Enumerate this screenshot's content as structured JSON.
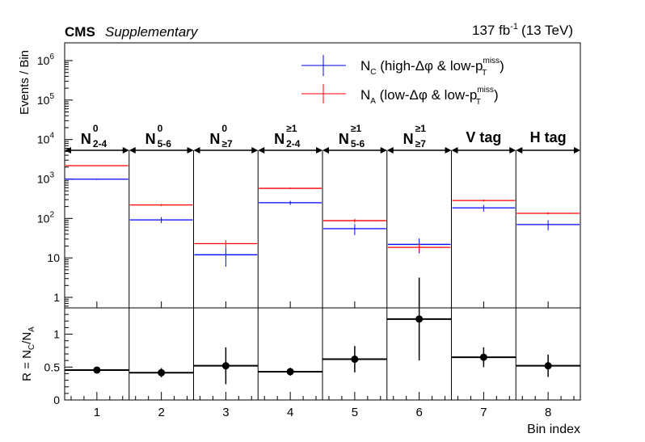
{
  "chart_data": [
    {
      "type": "line",
      "panel": "top",
      "experiment": "CMS",
      "experiment_note": "Supplementary",
      "luminosity": "137 fb",
      "luminosity_exp": "-1",
      "energy": "(13 TeV)",
      "ylabel": "Events / Bin",
      "yscale": "log",
      "ylim": [
        0.5,
        2000000
      ],
      "xlim": [
        0.5,
        8.5
      ],
      "y_tick_labels": [
        "1",
        "10",
        "10",
        "10",
        "10",
        "10",
        "10"
      ],
      "y_tick_exponents": [
        "",
        "",
        "2",
        "3",
        "4",
        "5",
        "6"
      ],
      "categories": [
        {
          "main": "N",
          "sup": "0",
          "sub": "2-4"
        },
        {
          "main": "N",
          "sup": "0",
          "sub": "5-6"
        },
        {
          "main": "N",
          "sup": "0",
          "sub": "≥7"
        },
        {
          "main": "N",
          "sup": "≥1",
          "sub": "2-4"
        },
        {
          "main": "N",
          "sup": "≥1",
          "sub": "5-6"
        },
        {
          "main": "N",
          "sup": "≥1",
          "sub": "≥7"
        },
        {
          "main": "V tag",
          "sup": "",
          "sub": ""
        },
        {
          "main": "H tag",
          "sup": "",
          "sub": ""
        }
      ],
      "series": [
        {
          "name": "N_C (high-Δφ & low-p_T^miss)",
          "color": "#0000ff",
          "x": [
            1,
            2,
            3,
            4,
            5,
            6,
            7,
            8
          ],
          "values": [
            990,
            92,
            12,
            250,
            55,
            22,
            185,
            70
          ],
          "errors": [
            40,
            16,
            6,
            30,
            17,
            9,
            35,
            20
          ]
        },
        {
          "name": "N_A (low-Δφ & low-p_T^miss)",
          "color": "#ff0000",
          "x": [
            1,
            2,
            3,
            4,
            5,
            6,
            7,
            8
          ],
          "values": [
            2180,
            220,
            23,
            580,
            88,
            18.5,
            285,
            135
          ],
          "errors": [
            50,
            15,
            5,
            25,
            10,
            4,
            18,
            10
          ]
        }
      ],
      "legend": [
        {
          "main": "N",
          "sub": "C",
          "text": " (high-Δφ & low-p",
          "sup2": "miss",
          "sub2": "T",
          "close": ")",
          "color": "#0000ff"
        },
        {
          "main": "N",
          "sub": "A",
          "text": " (low-Δφ & low-p",
          "sup2": "miss",
          "sub2": "T",
          "close": ")",
          "color": "#ff0000"
        }
      ],
      "legend_position": "top-right"
    },
    {
      "type": "scatter",
      "panel": "bottom",
      "ylabel": "R = N_C/N_A",
      "ylabel_parts": {
        "main": "R = N",
        "sub1": "C",
        "slash": "/N",
        "sub2": "A"
      },
      "xlabel": "Bin index",
      "ylim": [
        0,
        1.4
      ],
      "y_tick_labels": [
        "0",
        "0.5",
        "1"
      ],
      "x_tick_labels": [
        "1",
        "2",
        "3",
        "4",
        "5",
        "6",
        "7",
        "8"
      ],
      "x": [
        1,
        2,
        3,
        4,
        5,
        6,
        7,
        8
      ],
      "values": [
        0.455,
        0.415,
        0.52,
        0.43,
        0.62,
        1.23,
        0.65,
        0.52
      ],
      "err_low": [
        0.03,
        0.07,
        0.28,
        0.06,
        0.2,
        0.63,
        0.15,
        0.17
      ],
      "err_high": [
        0.03,
        0.07,
        0.28,
        0.06,
        0.2,
        0.63,
        0.15,
        0.17
      ],
      "color": "#000000"
    }
  ]
}
